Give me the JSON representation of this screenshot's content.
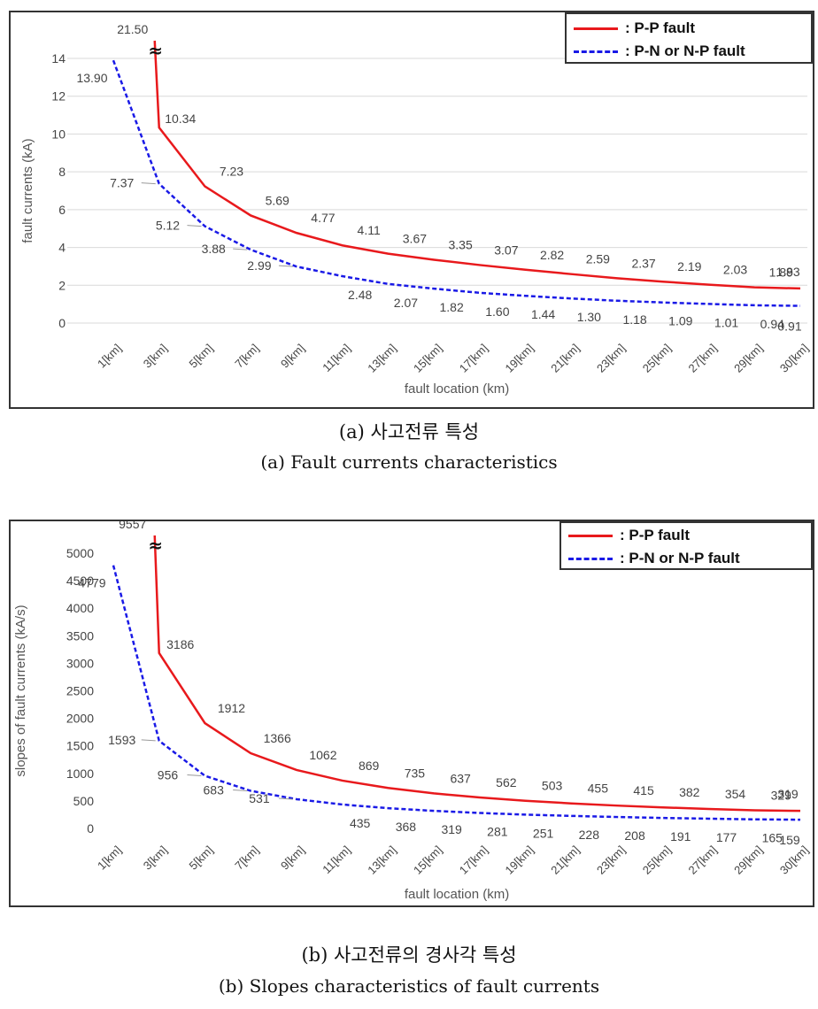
{
  "chart_data": [
    {
      "type": "line",
      "caption_ko": "(a) 사고전류 특성",
      "caption_en": "(a) Fault currents characteristics",
      "xlabel": "fault location (km)",
      "ylabel": "fault currents (kA)",
      "ylim": [
        0,
        14
      ],
      "yticks": [
        "0",
        "2",
        "4",
        "6",
        "8",
        "10",
        "12",
        "14"
      ],
      "categories": [
        "1[km]",
        "3[km]",
        "5[km]",
        "7[km]",
        "9[km]",
        "11[km]",
        "13[km]",
        "15[km]",
        "17[km]",
        "19[km]",
        "21[km]",
        "23[km]",
        "25[km]",
        "27[km]",
        "29[km]",
        "30[km]"
      ],
      "break_marker": "≈",
      "break_label": "21.50",
      "grid": "horizontal",
      "legend_position": "top-right",
      "series": [
        {
          "name": ": P-P fault",
          "color": "#e8191c",
          "style": "solid",
          "values": [
            null,
            10.34,
            7.23,
            5.69,
            4.77,
            4.11,
            3.67,
            3.35,
            3.07,
            2.82,
            2.59,
            2.37,
            2.19,
            2.03,
            1.89,
            1.83
          ],
          "labels": [
            "",
            "10.34",
            "7.23",
            "5.69",
            "4.77",
            "4.11",
            "3.67",
            "3.35",
            "3.07",
            "2.82",
            "2.59",
            "2.37",
            "2.19",
            "2.03",
            "1.89",
            "1.83"
          ]
        },
        {
          "name": ": P-N or N-P fault",
          "color": "#1a1ae6",
          "style": "dashed",
          "values": [
            13.9,
            7.37,
            5.12,
            3.88,
            2.99,
            2.48,
            2.07,
            1.82,
            1.6,
            1.44,
            1.3,
            1.18,
            1.09,
            1.01,
            0.94,
            0.91
          ],
          "labels": [
            "13.90",
            "7.37",
            "5.12",
            "3.88",
            "2.99",
            "2.48",
            "2.07",
            "1.82",
            "1.60",
            "1.44",
            "1.30",
            "1.18",
            "1.09",
            "1.01",
            "0.94",
            "0.91"
          ]
        }
      ]
    },
    {
      "type": "line",
      "caption_ko": "(b) 사고전류의 경사각 특성",
      "caption_en": "(b) Slopes characteristics of fault currents",
      "xlabel": "fault location (km)",
      "ylabel": "slopes of fault currents (kA/s)",
      "ylim": [
        0,
        5000
      ],
      "yticks": [
        "0",
        "500",
        "1000",
        "1500",
        "2000",
        "2500",
        "3000",
        "3500",
        "4000",
        "4500",
        "5000"
      ],
      "categories": [
        "1[km]",
        "3[km]",
        "5[km]",
        "7[km]",
        "9[km]",
        "11[km]",
        "13[km]",
        "15[km]",
        "17[km]",
        "19[km]",
        "21[km]",
        "23[km]",
        "25[km]",
        "27[km]",
        "29[km]",
        "30[km]"
      ],
      "break_marker": "≈",
      "break_label": "9557",
      "grid": "none",
      "legend_position": "top-right",
      "series": [
        {
          "name": ": P-P fault",
          "color": "#e8191c",
          "style": "solid",
          "values": [
            null,
            3186,
            1912,
            1366,
            1062,
            869,
            735,
            637,
            562,
            503,
            455,
            415,
            382,
            354,
            329,
            319
          ],
          "labels": [
            "",
            "3186",
            "1912",
            "1366",
            "1062",
            "869",
            "735",
            "637",
            "562",
            "503",
            "455",
            "415",
            "382",
            "354",
            "329",
            "319"
          ]
        },
        {
          "name": ": P-N or N-P fault",
          "color": "#1a1ae6",
          "style": "dashed",
          "values": [
            4779,
            1593,
            956,
            683,
            531,
            435,
            368,
            319,
            281,
            251,
            228,
            208,
            191,
            177,
            165,
            159
          ],
          "labels": [
            "4779",
            "1593",
            "956",
            "683",
            "531",
            "435",
            "368",
            "319",
            "281",
            "251",
            "228",
            "208",
            "191",
            "177",
            "165",
            "159"
          ]
        }
      ]
    }
  ]
}
